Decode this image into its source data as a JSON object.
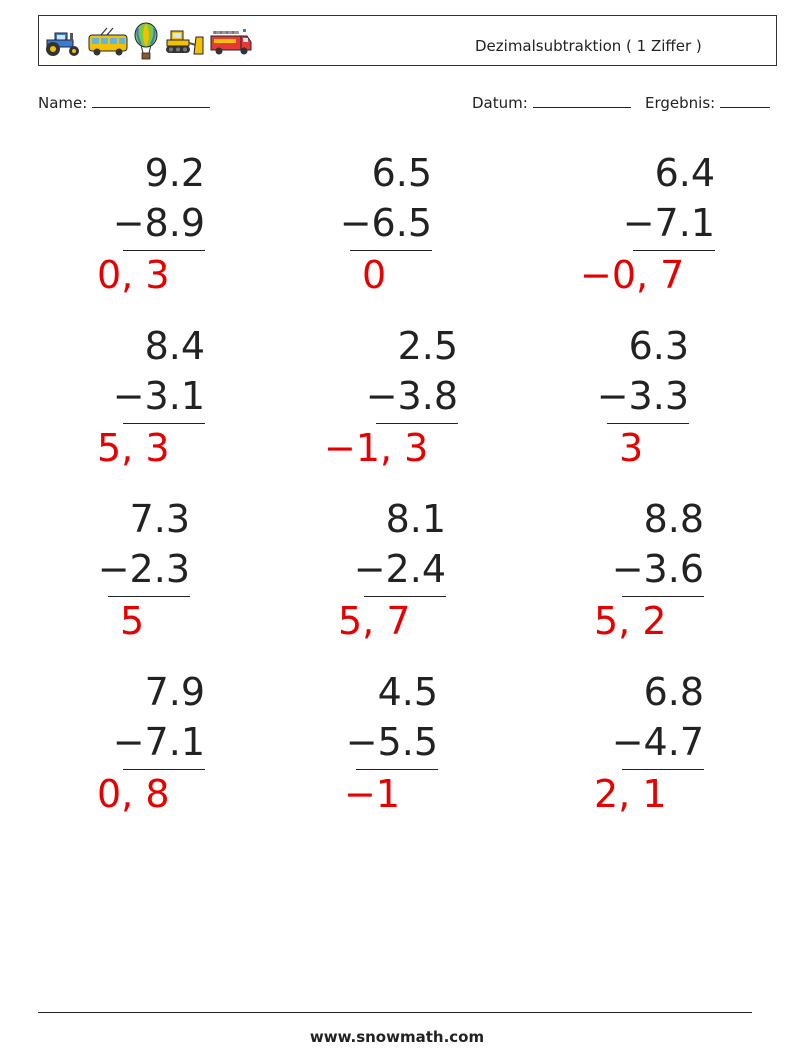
{
  "header": {
    "title": "Dezimalsubtraktion ( 1 Ziffer )",
    "icons": [
      "tractor-icon",
      "trolleybus-icon",
      "hot-air-balloon-icon",
      "bulldozer-icon",
      "fire-truck-icon"
    ]
  },
  "info": {
    "name_label": "Name:",
    "date_label": "Datum:",
    "score_label": "Ergebnis:"
  },
  "problems": [
    {
      "a": "9.2",
      "b": "−8.9",
      "answer": "0, 3"
    },
    {
      "a": "6.5",
      "b": "−6.5",
      "answer": "0"
    },
    {
      "a": "6.4",
      "b": "−7.1",
      "answer": "−0, 7"
    },
    {
      "a": "8.4",
      "b": "−3.1",
      "answer": "5, 3"
    },
    {
      "a": "2.5",
      "b": "−3.8",
      "answer": "−1, 3"
    },
    {
      "a": "6.3",
      "b": "−3.3",
      "answer": "3"
    },
    {
      "a": "7.3",
      "b": "−2.3",
      "answer": "5"
    },
    {
      "a": "8.1",
      "b": "−2.4",
      "answer": "5, 7"
    },
    {
      "a": "8.8",
      "b": "−3.6",
      "answer": "5, 2"
    },
    {
      "a": "7.9",
      "b": "−7.1",
      "answer": "0, 8"
    },
    {
      "a": "4.5",
      "b": "−5.5",
      "answer": "−1"
    },
    {
      "a": "6.8",
      "b": "−4.7",
      "answer": "2, 1"
    }
  ],
  "footer": {
    "site": "www.snowmath.com"
  },
  "colors": {
    "answer": "#e60000",
    "text": "#222222"
  }
}
